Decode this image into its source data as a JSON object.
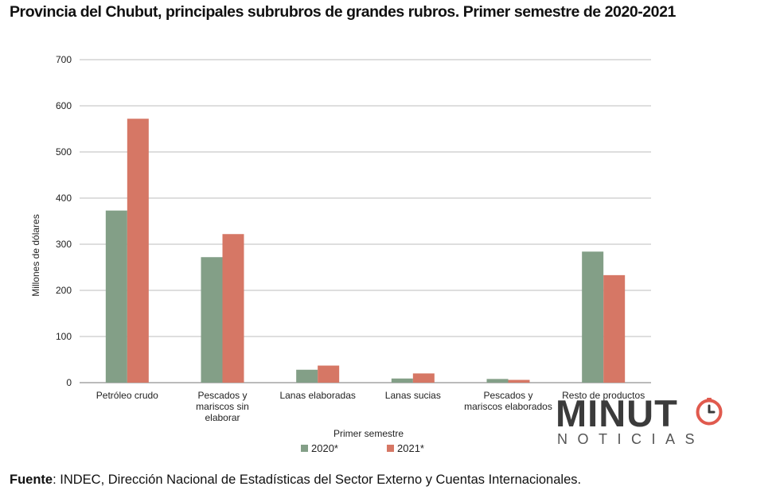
{
  "title": "Provincia del Chubut, principales subrubros de grandes rubros. Primer semestre de 2020-2021",
  "source": {
    "label": "Fuente",
    "text": ": INDEC, Dirección Nacional de Estadísticas del Sector Externo y Cuentas Internacionales."
  },
  "logo": {
    "main": "MINUT",
    "sub": "NOTICIAS",
    "clock_icon": "clock-icon",
    "accent_color": "#e05a4e"
  },
  "chart_data": {
    "type": "bar",
    "title": "Provincia del Chubut, principales subrubros de grandes rubros. Primer semestre de 2020-2021",
    "xlabel": "Primer semestre",
    "ylabel": "Millones de dólares",
    "ylim": [
      0,
      700
    ],
    "yticks": [
      0,
      100,
      200,
      300,
      400,
      500,
      600,
      700
    ],
    "grid": true,
    "legend_position": "bottom",
    "categories": [
      [
        "Petróleo crudo"
      ],
      [
        "Pescados y",
        "mariscos sin",
        "elaborar"
      ],
      [
        "Lanas elaboradas"
      ],
      [
        "Lanas sucias"
      ],
      [
        "Pescados y",
        "mariscos elaborados"
      ],
      [
        "Resto de productos"
      ]
    ],
    "series": [
      {
        "name": "2020*",
        "color": "#839f87",
        "values": [
          373,
          272,
          28,
          9,
          8,
          284
        ]
      },
      {
        "name": "2021*",
        "color": "#d67765",
        "values": [
          572,
          322,
          37,
          20,
          6,
          233
        ]
      }
    ]
  }
}
